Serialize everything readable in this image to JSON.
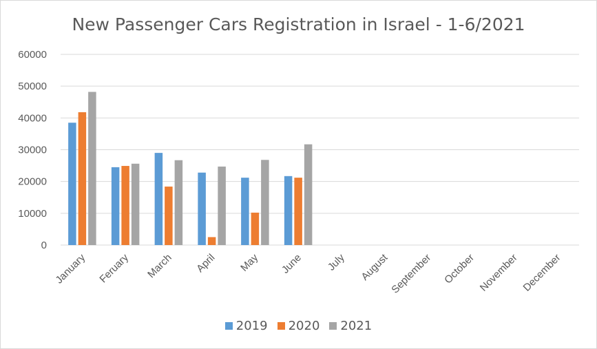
{
  "chart_data": {
    "type": "bar",
    "title": "New Passenger Cars Registration in Israel - 1-6/2021",
    "categories": [
      "January",
      "Feruary",
      "March",
      "April",
      "May",
      "June",
      "July",
      "August",
      "September",
      "October",
      "November",
      "December"
    ],
    "series": [
      {
        "name": "2019",
        "color": "#5b9bd5",
        "values": [
          38500,
          24500,
          29000,
          22800,
          21200,
          21700,
          null,
          null,
          null,
          null,
          null,
          null
        ]
      },
      {
        "name": "2020",
        "color": "#ed7d31",
        "values": [
          41800,
          24900,
          18400,
          2500,
          10200,
          21200,
          null,
          null,
          null,
          null,
          null,
          null
        ]
      },
      {
        "name": "2021",
        "color": "#a5a5a5",
        "values": [
          48200,
          25600,
          26700,
          24700,
          26800,
          31700,
          null,
          null,
          null,
          null,
          null,
          null
        ]
      }
    ],
    "yticks": [
      "0",
      "10000",
      "20000",
      "30000",
      "40000",
      "50000",
      "60000"
    ],
    "ylim": [
      0,
      60000
    ],
    "grid": true,
    "legend": "bottom"
  }
}
